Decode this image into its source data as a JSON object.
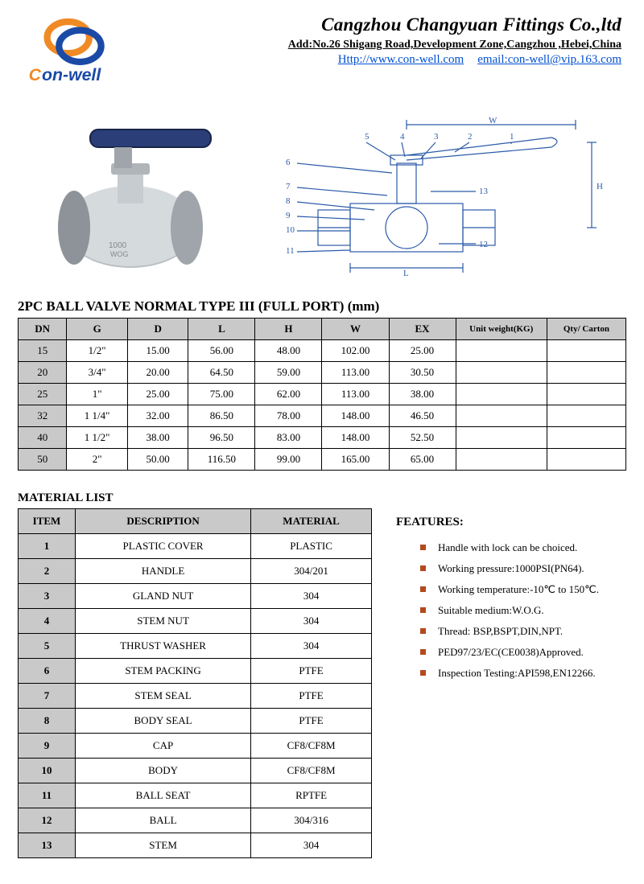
{
  "company": {
    "name": "Cangzhou Changyuan Fittings Co.,ltd",
    "address": "Add:No.26 Shigang Road,Development Zone,Cangzhou ,Hebei,China",
    "url_label": "Http://www.con-well.com",
    "email_prefix": "email:",
    "email": "con-well@vip.163.com",
    "brand": "on-well"
  },
  "logo_colors": {
    "orange": "#f08a24",
    "blue": "#1b4aa6",
    "brand_text": "#1b4aa6"
  },
  "diagram": {
    "labels_left": [
      "6",
      "7",
      "8",
      "9",
      "10",
      "11"
    ],
    "labels_top": [
      "5",
      "4",
      "3",
      "2",
      "1"
    ],
    "labels_right": [
      "13",
      "12"
    ],
    "dims": [
      "W",
      "H",
      "L"
    ],
    "ink": "#2b5aa8"
  },
  "spec_table": {
    "title": "2PC  BALL VALVE NORMAL TYPE III   (FULL PORT) (mm)",
    "columns": [
      "DN",
      "G",
      "D",
      "L",
      "H",
      "W",
      "EX",
      "Unit weight(KG)",
      "Qty/ Carton"
    ],
    "col_widths_pct": [
      8,
      10,
      10,
      11,
      11,
      11,
      11,
      15,
      13
    ],
    "rows": [
      [
        "15",
        "1/2\"",
        "15.00",
        "56.00",
        "48.00",
        "102.00",
        "25.00",
        "",
        ""
      ],
      [
        "20",
        "3/4\"",
        "20.00",
        "64.50",
        "59.00",
        "113.00",
        "30.50",
        "",
        ""
      ],
      [
        "25",
        "1\"",
        "25.00",
        "75.00",
        "62.00",
        "113.00",
        "38.00",
        "",
        ""
      ],
      [
        "32",
        "1 1/4\"",
        "32.00",
        "86.50",
        "78.00",
        "148.00",
        "46.50",
        "",
        ""
      ],
      [
        "40",
        "1 1/2\"",
        "38.00",
        "96.50",
        "83.00",
        "148.00",
        "52.50",
        "",
        ""
      ],
      [
        "50",
        "2\"",
        "50.00",
        "116.50",
        "99.00",
        "165.00",
        "65.00",
        "",
        ""
      ]
    ]
  },
  "material_table": {
    "title": "MATERIAL LIST",
    "columns": [
      "ITEM",
      "DESCRIPTION",
      "MATERIAL"
    ],
    "rows": [
      [
        "1",
        "PLASTIC COVER",
        "PLASTIC"
      ],
      [
        "2",
        "HANDLE",
        "304/201"
      ],
      [
        "3",
        "GLAND NUT",
        "304"
      ],
      [
        "4",
        "STEM  NUT",
        "304"
      ],
      [
        "5",
        "THRUST WASHER",
        "304"
      ],
      [
        "6",
        "STEM PACKING",
        "PTFE"
      ],
      [
        "7",
        "STEM SEAL",
        "PTFE"
      ],
      [
        "8",
        "BODY SEAL",
        "PTFE"
      ],
      [
        "9",
        "CAP",
        "CF8/CF8M"
      ],
      [
        "10",
        "BODY",
        "CF8/CF8M"
      ],
      [
        "11",
        "BALL SEAT",
        "RPTFE"
      ],
      [
        "12",
        "BALL",
        "304/316"
      ],
      [
        "13",
        "STEM",
        "304"
      ]
    ]
  },
  "features": {
    "title": "FEATURES:",
    "bullet_color": "#b34a1e",
    "items": [
      "Handle with lock can be choiced.",
      "Working pressure:1000PSI(PN64).",
      "Working temperature:-10℃ to 150℃.",
      "Suitable medium:W.O.G.",
      "Thread: BSP,BSPT,DIN,NPT.",
      "PED97/23/EC(CE0038)Approved.",
      "Inspection Testing:API598,EN12266."
    ]
  }
}
